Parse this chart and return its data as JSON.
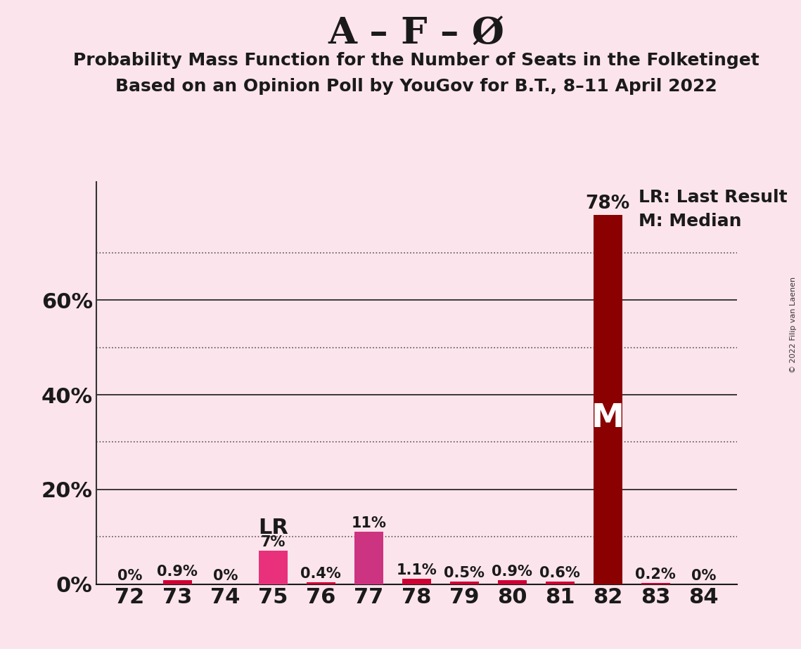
{
  "title": "A – F – Ø",
  "subtitle1": "Probability Mass Function for the Number of Seats in the Folketinget",
  "subtitle2": "Based on an Opinion Poll by YouGov for B.T., 8–11 April 2022",
  "copyright": "© 2022 Filip van Laenen",
  "categories": [
    72,
    73,
    74,
    75,
    76,
    77,
    78,
    79,
    80,
    81,
    82,
    83,
    84
  ],
  "values": [
    0.0,
    0.9,
    0.0,
    7.0,
    0.4,
    11.0,
    1.1,
    0.5,
    0.9,
    0.6,
    78.0,
    0.2,
    0.0
  ],
  "value_labels": [
    "0%",
    "0.9%",
    "0%",
    "7%",
    "0.4%",
    "11%",
    "1.1%",
    "0.5%",
    "0.9%",
    "0.6%",
    "78%",
    "0.2%",
    "0%"
  ],
  "bar_colors": [
    "#cc0033",
    "#cc0033",
    "#cc0033",
    "#e8317a",
    "#cc0033",
    "#cc3380",
    "#cc0033",
    "#cc0033",
    "#cc0033",
    "#cc0033",
    "#8b0000",
    "#cc0033",
    "#cc0033"
  ],
  "median_bar_index": 10,
  "lr_annotation_index": 3,
  "lr_annotation_text": "LR",
  "median_label": "M",
  "legend_lr": "LR: Last Result",
  "legend_m": "M: Median",
  "background_color": "#fce4ec",
  "ylim": [
    0,
    85
  ],
  "solid_lines": [
    20,
    40,
    60
  ],
  "dotted_lines": [
    10,
    30,
    50,
    70
  ],
  "ytick_positions": [
    0,
    20,
    40,
    60
  ],
  "ytick_labels": [
    "0%",
    "20%",
    "40%",
    "60%"
  ]
}
